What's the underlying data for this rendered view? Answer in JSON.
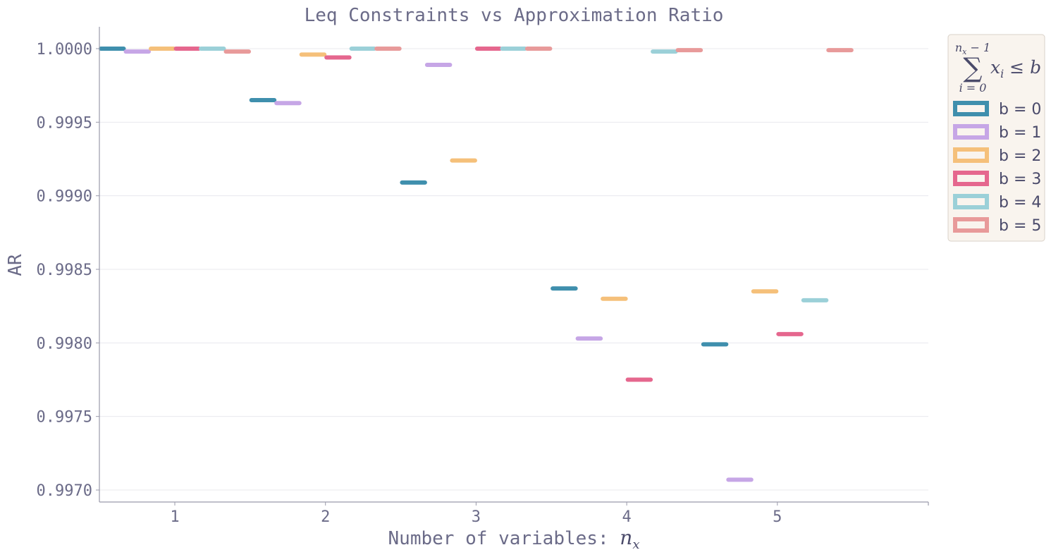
{
  "chart_data": {
    "type": "bar",
    "title": "Leq Constraints vs Approximation Ratio",
    "xlabel": "Number of variables: ",
    "xlabel_var": "n",
    "xlabel_sub": "x",
    "ylabel": "AR",
    "categories": [
      "1",
      "2",
      "3",
      "4",
      "5"
    ],
    "ylim": [
      0.99685,
      1.00015
    ],
    "yticks": [
      "0.9970",
      "0.9975",
      "0.9980",
      "0.9985",
      "0.9990",
      "0.9995",
      "1.0000"
    ],
    "grid": "horizontal",
    "legend_placement": "outside top-right",
    "legend_title": "sum_{i=0}^{n_x-1} x_i <= b",
    "series": [
      {
        "name": "b = 0",
        "color": "#3f8fad",
        "values": [
          1.0,
          0.99965,
          0.99909,
          0.99837,
          0.99799
        ]
      },
      {
        "name": "b = 1",
        "color": "#c6a6e6",
        "values": [
          0.99998,
          0.99963,
          0.99989,
          0.99803,
          0.99707
        ]
      },
      {
        "name": "b = 2",
        "color": "#f5c07a",
        "values": [
          1.0,
          0.99996,
          0.99924,
          0.9983,
          0.99835
        ]
      },
      {
        "name": "b = 3",
        "color": "#e5678e",
        "values": [
          1.0,
          0.99994,
          1.0,
          0.99775,
          0.99806
        ]
      },
      {
        "name": "b = 4",
        "color": "#9bd0d8",
        "values": [
          1.0,
          1.0,
          1.0,
          0.99998,
          0.99829
        ]
      },
      {
        "name": "b = 5",
        "color": "#e89a9a",
        "values": [
          0.99998,
          1.0,
          1.0,
          0.99999,
          0.99999
        ]
      }
    ]
  }
}
